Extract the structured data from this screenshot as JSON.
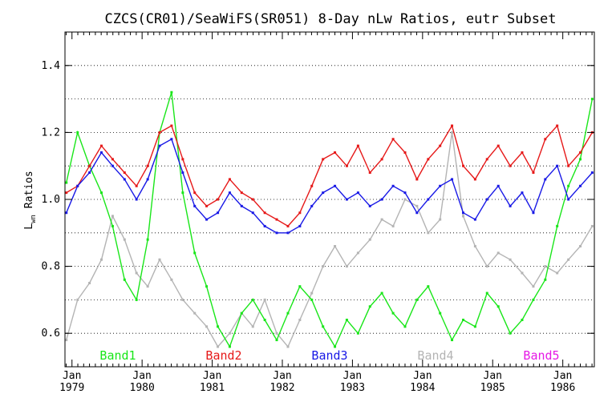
{
  "chart_data": {
    "type": "line",
    "title": "CZCS(CR01)/SeaWiFS(SR051) 8-Day nLw Ratios, eutr Subset",
    "ylabel_main": "L",
    "ylabel_sub": "wn",
    "ylabel_tail": " Ratios",
    "xlabel": "",
    "xlim": [
      1978.9,
      1986.45
    ],
    "ylim": [
      0.5,
      1.5
    ],
    "grid": true,
    "legend_position": "bottom",
    "y_ticks": [
      {
        "value": 0.6,
        "label": "0.6"
      },
      {
        "value": 0.8,
        "label": "0.8"
      },
      {
        "value": 1.0,
        "label": "1.0"
      },
      {
        "value": 1.2,
        "label": "1.2"
      },
      {
        "value": 1.4,
        "label": "1.4"
      }
    ],
    "x_ticks": [
      {
        "value": 1979.0,
        "month": "Jan",
        "year": "1979"
      },
      {
        "value": 1980.0,
        "month": "Jan",
        "year": "1980"
      },
      {
        "value": 1981.0,
        "month": "Jan",
        "year": "1981"
      },
      {
        "value": 1982.0,
        "month": "Jan",
        "year": "1982"
      },
      {
        "value": 1983.0,
        "month": "Jan",
        "year": "1983"
      },
      {
        "value": 1984.0,
        "month": "Jan",
        "year": "1984"
      },
      {
        "value": 1985.0,
        "month": "Jan",
        "year": "1985"
      },
      {
        "value": 1986.0,
        "month": "Jan",
        "year": "1986"
      }
    ],
    "series": [
      {
        "name": "Band4",
        "color": "#b4b4b4",
        "x": [
          1978.92,
          1979.08,
          1979.25,
          1979.42,
          1979.58,
          1979.75,
          1979.92,
          1980.08,
          1980.25,
          1980.42,
          1980.58,
          1980.75,
          1980.92,
          1981.08,
          1981.25,
          1981.42,
          1981.58,
          1981.75,
          1981.92,
          1982.08,
          1982.25,
          1982.42,
          1982.58,
          1982.75,
          1982.92,
          1983.08,
          1983.25,
          1983.42,
          1983.58,
          1983.75,
          1983.92,
          1984.08,
          1984.25,
          1984.42,
          1984.58,
          1984.75,
          1984.92,
          1985.08,
          1985.25,
          1985.42,
          1985.58,
          1985.75,
          1985.92,
          1986.08,
          1986.25,
          1986.42
        ],
        "values": [
          0.58,
          0.7,
          0.75,
          0.82,
          0.95,
          0.88,
          0.78,
          0.74,
          0.82,
          0.76,
          0.7,
          0.66,
          0.62,
          0.56,
          0.6,
          0.66,
          0.62,
          0.7,
          0.6,
          0.56,
          0.64,
          0.72,
          0.8,
          0.86,
          0.8,
          0.84,
          0.88,
          0.94,
          0.92,
          1.0,
          0.98,
          0.9,
          0.94,
          1.2,
          0.95,
          0.86,
          0.8,
          0.84,
          0.82,
          0.78,
          0.74,
          0.8,
          0.78,
          0.82,
          0.86,
          0.92
        ]
      },
      {
        "name": "Band1",
        "color": "#19e619",
        "x": [
          1978.92,
          1979.08,
          1979.25,
          1979.42,
          1979.58,
          1979.75,
          1979.92,
          1980.08,
          1980.25,
          1980.42,
          1980.58,
          1980.75,
          1980.92,
          1981.08,
          1981.25,
          1981.42,
          1981.58,
          1981.75,
          1981.92,
          1982.08,
          1982.25,
          1982.42,
          1982.58,
          1982.75,
          1982.92,
          1983.08,
          1983.25,
          1983.42,
          1983.58,
          1983.75,
          1983.92,
          1984.08,
          1984.25,
          1984.42,
          1984.58,
          1984.75,
          1984.92,
          1985.08,
          1985.25,
          1985.42,
          1985.58,
          1985.75,
          1985.92,
          1986.08,
          1986.25,
          1986.42
        ],
        "values": [
          1.05,
          1.2,
          1.1,
          1.02,
          0.92,
          0.76,
          0.7,
          0.88,
          1.2,
          1.32,
          1.02,
          0.84,
          0.74,
          0.62,
          0.56,
          0.66,
          0.7,
          0.64,
          0.58,
          0.66,
          0.74,
          0.7,
          0.62,
          0.56,
          0.64,
          0.6,
          0.68,
          0.72,
          0.66,
          0.62,
          0.7,
          0.74,
          0.66,
          0.58,
          0.64,
          0.62,
          0.72,
          0.68,
          0.6,
          0.64,
          0.7,
          0.76,
          0.92,
          1.04,
          1.12,
          1.3
        ]
      },
      {
        "name": "Band2",
        "color": "#e61919",
        "x": [
          1978.92,
          1979.08,
          1979.25,
          1979.42,
          1979.58,
          1979.75,
          1979.92,
          1980.08,
          1980.25,
          1980.42,
          1980.58,
          1980.75,
          1980.92,
          1981.08,
          1981.25,
          1981.42,
          1981.58,
          1981.75,
          1981.92,
          1982.08,
          1982.25,
          1982.42,
          1982.58,
          1982.75,
          1982.92,
          1983.08,
          1983.25,
          1983.42,
          1983.58,
          1983.75,
          1983.92,
          1984.08,
          1984.25,
          1984.42,
          1984.58,
          1984.75,
          1984.92,
          1985.08,
          1985.25,
          1985.42,
          1985.58,
          1985.75,
          1985.92,
          1986.08,
          1986.25,
          1986.42
        ],
        "values": [
          1.02,
          1.04,
          1.1,
          1.16,
          1.12,
          1.08,
          1.04,
          1.1,
          1.2,
          1.22,
          1.12,
          1.02,
          0.98,
          1.0,
          1.06,
          1.02,
          1.0,
          0.96,
          0.94,
          0.92,
          0.96,
          1.04,
          1.12,
          1.14,
          1.1,
          1.16,
          1.08,
          1.12,
          1.18,
          1.14,
          1.06,
          1.12,
          1.16,
          1.22,
          1.1,
          1.06,
          1.12,
          1.16,
          1.1,
          1.14,
          1.08,
          1.18,
          1.22,
          1.1,
          1.14,
          1.2
        ]
      },
      {
        "name": "Band3",
        "color": "#1919e6",
        "x": [
          1978.92,
          1979.08,
          1979.25,
          1979.42,
          1979.58,
          1979.75,
          1979.92,
          1980.08,
          1980.25,
          1980.42,
          1980.58,
          1980.75,
          1980.92,
          1981.08,
          1981.25,
          1981.42,
          1981.58,
          1981.75,
          1981.92,
          1982.08,
          1982.25,
          1982.42,
          1982.58,
          1982.75,
          1982.92,
          1983.08,
          1983.25,
          1983.42,
          1983.58,
          1983.75,
          1983.92,
          1984.08,
          1984.25,
          1984.42,
          1984.58,
          1984.75,
          1984.92,
          1985.08,
          1985.25,
          1985.42,
          1985.58,
          1985.75,
          1985.92,
          1986.08,
          1986.25,
          1986.42
        ],
        "values": [
          0.96,
          1.04,
          1.08,
          1.14,
          1.1,
          1.06,
          1.0,
          1.06,
          1.16,
          1.18,
          1.08,
          0.98,
          0.94,
          0.96,
          1.02,
          0.98,
          0.96,
          0.92,
          0.9,
          0.9,
          0.92,
          0.98,
          1.02,
          1.04,
          1.0,
          1.02,
          0.98,
          1.0,
          1.04,
          1.02,
          0.96,
          1.0,
          1.04,
          1.06,
          0.96,
          0.94,
          1.0,
          1.04,
          0.98,
          1.02,
          0.96,
          1.06,
          1.1,
          1.0,
          1.04,
          1.08
        ]
      }
    ],
    "legend": [
      {
        "label": "Band1",
        "color": "#19e619"
      },
      {
        "label": "Band2",
        "color": "#e61919"
      },
      {
        "label": "Band3",
        "color": "#1919e6"
      },
      {
        "label": "Band4",
        "color": "#b4b4b4"
      },
      {
        "label": "Band5",
        "color": "#e619e6"
      }
    ]
  }
}
